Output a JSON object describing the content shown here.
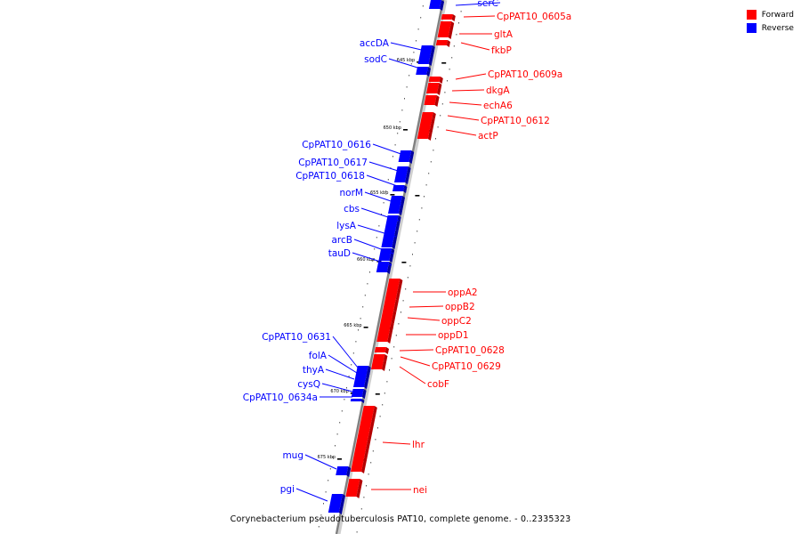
{
  "title": "Corynebacterium pseudotuberculosis PAT10, complete genome. - 0..2335323",
  "legend": [
    {
      "label": "Forward",
      "color": "#ff0000"
    },
    {
      "label": "Reverse",
      "color": "#0000ff"
    }
  ],
  "colors": {
    "forward": "#ff0000",
    "reverse": "#0000ff",
    "backbone": "#808080"
  },
  "tick_labels": [
    "645 kbp",
    "650 kbp",
    "655 kbp",
    "660 kbp",
    "665 kbp",
    "670 kbp",
    "675 kbp"
  ],
  "genes": [
    {
      "name": "serC",
      "strand": "reverse"
    },
    {
      "name": "CpPAT10_0605a",
      "strand": "forward"
    },
    {
      "name": "gltA",
      "strand": "forward"
    },
    {
      "name": "fkbP",
      "strand": "forward"
    },
    {
      "name": "accDA",
      "strand": "reverse"
    },
    {
      "name": "sodC",
      "strand": "reverse"
    },
    {
      "name": "CpPAT10_0609a",
      "strand": "forward"
    },
    {
      "name": "dkgA",
      "strand": "forward"
    },
    {
      "name": "echA6",
      "strand": "forward"
    },
    {
      "name": "CpPAT10_0612",
      "strand": "forward"
    },
    {
      "name": "actP",
      "strand": "forward"
    },
    {
      "name": "CpPAT10_0616",
      "strand": "reverse"
    },
    {
      "name": "CpPAT10_0617",
      "strand": "reverse"
    },
    {
      "name": "CpPAT10_0618",
      "strand": "reverse"
    },
    {
      "name": "norM",
      "strand": "reverse"
    },
    {
      "name": "cbs",
      "strand": "reverse"
    },
    {
      "name": "lysA",
      "strand": "reverse"
    },
    {
      "name": "arcB",
      "strand": "reverse"
    },
    {
      "name": "tauD",
      "strand": "reverse"
    },
    {
      "name": "oppA2",
      "strand": "forward"
    },
    {
      "name": "oppB2",
      "strand": "forward"
    },
    {
      "name": "oppC2",
      "strand": "forward"
    },
    {
      "name": "oppD1",
      "strand": "forward"
    },
    {
      "name": "CpPAT10_0628",
      "strand": "forward"
    },
    {
      "name": "CpPAT10_0629",
      "strand": "forward"
    },
    {
      "name": "cobF",
      "strand": "forward"
    },
    {
      "name": "CpPAT10_0631",
      "strand": "reverse"
    },
    {
      "name": "folA",
      "strand": "reverse"
    },
    {
      "name": "thyA",
      "strand": "reverse"
    },
    {
      "name": "cysQ",
      "strand": "reverse"
    },
    {
      "name": "CpPAT10_0634a",
      "strand": "reverse"
    },
    {
      "name": "lhr",
      "strand": "forward"
    },
    {
      "name": "mug",
      "strand": "reverse"
    },
    {
      "name": "nei",
      "strand": "forward"
    },
    {
      "name": "pgi",
      "strand": "reverse"
    }
  ]
}
